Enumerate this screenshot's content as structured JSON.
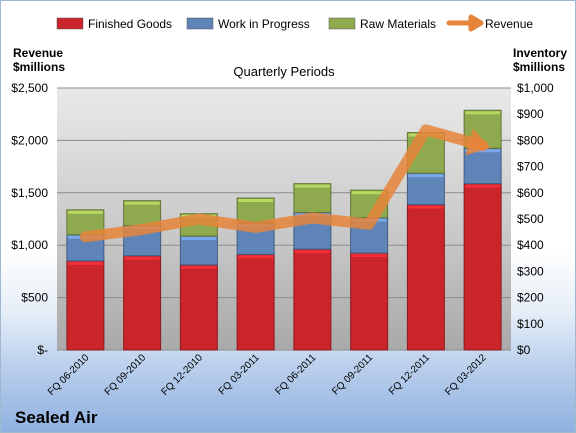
{
  "chart_data": {
    "type": "bar",
    "title": "Quarterly Periods",
    "company": "Sealed Air",
    "left_axis_label": [
      "Revenue",
      "$millions"
    ],
    "right_axis_label": [
      "Inventory",
      "$millions"
    ],
    "categories": [
      "FQ 06-2010",
      "FQ 09-2010",
      "FQ 12-2010",
      "FQ 03-2011",
      "FQ 06-2011",
      "FQ 09-2011",
      "FQ 12-2011",
      "FQ 03-2012"
    ],
    "stacked": true,
    "series": [
      {
        "name": "Finished Goods",
        "axis": "right",
        "color": "#c9252b",
        "values": [
          340,
          360,
          325,
          365,
          385,
          370,
          555,
          635
        ]
      },
      {
        "name": "Work in Progress",
        "axis": "right",
        "color": "#5f84b8",
        "values": [
          100,
          115,
          110,
          120,
          140,
          135,
          120,
          135
        ]
      },
      {
        "name": "Raw Materials",
        "axis": "right",
        "color": "#8fa94e",
        "values": [
          95,
          95,
          85,
          95,
          110,
          105,
          155,
          145
        ]
      }
    ],
    "line_series": {
      "name": "Revenue",
      "axis": "left",
      "color": "#e6843a",
      "values": [
        1080,
        1150,
        1250,
        1170,
        1260,
        1200,
        2100,
        1950
      ]
    },
    "left_axis": {
      "min": 0,
      "max": 2500,
      "step": 500,
      "ticks": [
        "$-",
        "$500",
        "$1,000",
        "$1,500",
        "$2,000",
        "$2,500"
      ]
    },
    "right_axis": {
      "min": 0,
      "max": 1000,
      "step": 100,
      "ticks": [
        "$0",
        "$100",
        "$200",
        "$300",
        "$400",
        "$500",
        "$600",
        "$700",
        "$800",
        "$900",
        "$1,000"
      ]
    },
    "legend_position": "top",
    "grid": true
  }
}
